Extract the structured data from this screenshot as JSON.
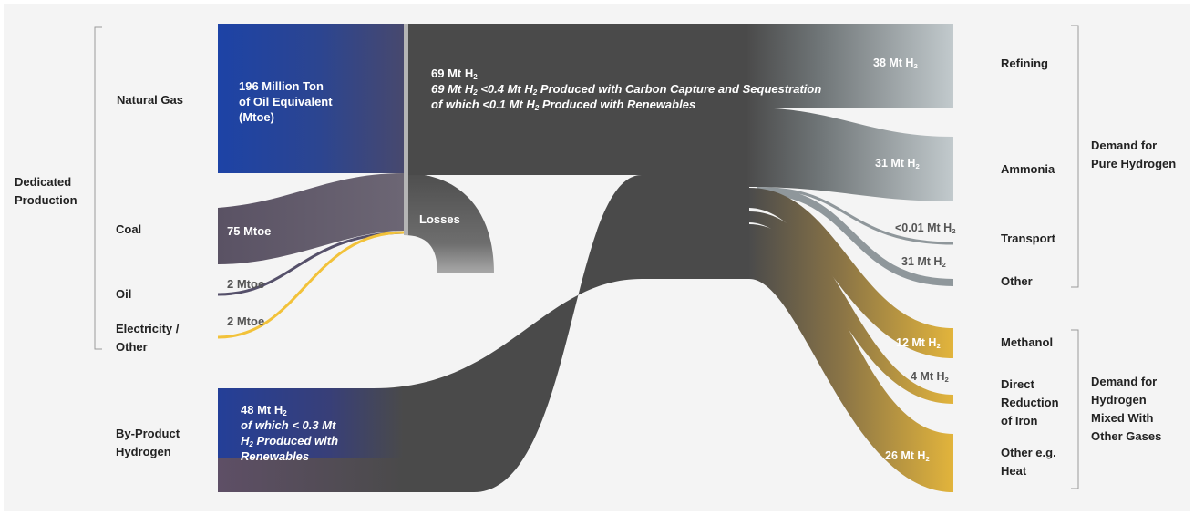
{
  "sources": {
    "group_dedicated": [
      "Dedicated",
      "Production"
    ],
    "natural_gas": "Natural Gas",
    "coal": "Coal",
    "oil": "Oil",
    "electricity": [
      "Electricity /",
      "Other"
    ],
    "byproduct": [
      "By-Product",
      "Hydrogen"
    ]
  },
  "flow_labels": {
    "natural_gas_mtoe": [
      "196 Million Ton",
      "of Oil Equivalent",
      "(Mtoe)"
    ],
    "coal_mtoe": "75 Mtoe",
    "oil_mtoe": "2 Mtoe",
    "electricity_mtoe": "2 Mtoe",
    "losses": "Losses",
    "central_amount": "69 Mt H",
    "central_ccs_pre": "69 Mt H",
    "central_ccs_mid": " <0.4 Mt H",
    "central_ccs_post": " Produced with Carbon Capture and Sequestration",
    "central_renew_pre": "of which <0.1 Mt H",
    "central_renew_post": " Produced with Renewables",
    "byproduct_amount": "48 Mt H",
    "byproduct_line2": "of which < 0.3 Mt",
    "byproduct_line3_post": " Produced with",
    "byproduct_line4": "Renewables",
    "h": "H",
    "sub2": "2"
  },
  "outputs": {
    "refining_value": "38 Mt H",
    "ammonia_value": "31 Mt H",
    "transport_value": "<0.01 Mt H",
    "other_value": "31 Mt H",
    "methanol_value": "12 Mt H",
    "dri_value": "4 Mt H",
    "heat_value": "26 Mt H"
  },
  "demand": {
    "refining": "Refining",
    "ammonia": "Ammonia",
    "transport": "Transport",
    "other": "Other",
    "methanol": "Methanol",
    "dri": [
      "Direct",
      "Reduction",
      "of Iron"
    ],
    "heat": [
      "Other e.g.",
      "Heat"
    ],
    "group_pure": [
      "Demand for",
      "Pure Hydrogen"
    ],
    "group_mixed": [
      "Demand for",
      "Hydrogen",
      "Mixed With",
      "Other Gases"
    ]
  },
  "chart_data": {
    "type": "sankey",
    "units": [
      "Mtoe",
      "Mt H2"
    ],
    "inputs": [
      {
        "source": "Natural Gas",
        "value": 196,
        "unit": "Mtoe"
      },
      {
        "source": "Coal",
        "value": 75,
        "unit": "Mtoe"
      },
      {
        "source": "Oil",
        "value": 2,
        "unit": "Mtoe"
      },
      {
        "source": "Electricity / Other",
        "value": 2,
        "unit": "Mtoe"
      },
      {
        "source": "By-Product Hydrogen",
        "value": 48,
        "unit": "Mt H2"
      }
    ],
    "central": {
      "dedicated_h2": 69,
      "ccs_h2": "<0.4",
      "renewables_h2": "<0.1",
      "byproduct_renewables": "< 0.3"
    },
    "outputs": [
      {
        "target": "Refining",
        "value": 38,
        "group": "Demand for Pure Hydrogen"
      },
      {
        "target": "Ammonia",
        "value": 31,
        "group": "Demand for Pure Hydrogen"
      },
      {
        "target": "Transport",
        "value": "<0.01",
        "group": "Demand for Pure Hydrogen"
      },
      {
        "target": "Other",
        "value": 31,
        "group": "Demand for Pure Hydrogen"
      },
      {
        "target": "Methanol",
        "value": 12,
        "group": "Demand for Hydrogen Mixed With Other Gases"
      },
      {
        "target": "Direct Reduction of Iron",
        "value": 4,
        "group": "Demand for Hydrogen Mixed With Other Gases"
      },
      {
        "target": "Other e.g. Heat",
        "value": 26,
        "group": "Demand for Hydrogen Mixed With Other Gases"
      }
    ],
    "colors": {
      "dedicated": "#1e3f9b",
      "coal": "#5c5366",
      "electricity": "#f2c23a",
      "hub": "#4a4a4a",
      "pure_demand": "#b9c1c4",
      "mixed_demand": "#d6a93a"
    }
  }
}
